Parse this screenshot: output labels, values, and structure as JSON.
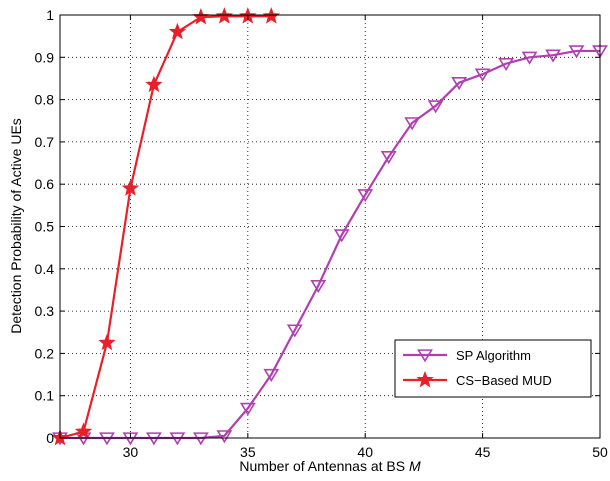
{
  "chart_data": {
    "type": "line",
    "title": "",
    "xlabel": "Number of Antennas at BS ",
    "xlabel_symbol": "M",
    "ylabel": "Detection Probability of Active UEs",
    "xlim": [
      27,
      50
    ],
    "ylim": [
      0,
      1
    ],
    "xticks": [
      30,
      35,
      40,
      45,
      50
    ],
    "yticks": [
      0,
      0.1,
      0.2,
      0.3,
      0.4,
      0.5,
      0.6,
      0.7,
      0.8,
      0.9,
      1
    ],
    "ytick_labels": [
      "0",
      "0.1",
      "0.2",
      "0.3",
      "0.4",
      "0.5",
      "0.6",
      "0.7",
      "0.8",
      "0.9",
      "1"
    ],
    "grid": true,
    "legend_position": "lower-right",
    "series": [
      {
        "name": "SP Algorithm",
        "color": "#b040b0",
        "marker": "triangle-down",
        "x": [
          27,
          28,
          29,
          30,
          31,
          32,
          33,
          34,
          35,
          36,
          37,
          38,
          39,
          40,
          41,
          42,
          43,
          44,
          45,
          46,
          47,
          48,
          49,
          50
        ],
        "y": [
          0,
          0,
          0,
          0,
          0,
          0,
          0,
          0.005,
          0.07,
          0.15,
          0.255,
          0.36,
          0.48,
          0.575,
          0.665,
          0.745,
          0.785,
          0.84,
          0.86,
          0.885,
          0.9,
          0.905,
          0.915,
          0.915
        ]
      },
      {
        "name": "CS−Based MUD",
        "color": "#e8202a",
        "marker": "star",
        "x": [
          27,
          28,
          29,
          30,
          31,
          32,
          33,
          34,
          35,
          36
        ],
        "y": [
          0,
          0.015,
          0.225,
          0.59,
          0.835,
          0.96,
          0.995,
          0.997,
          0.997,
          0.997
        ]
      }
    ]
  }
}
